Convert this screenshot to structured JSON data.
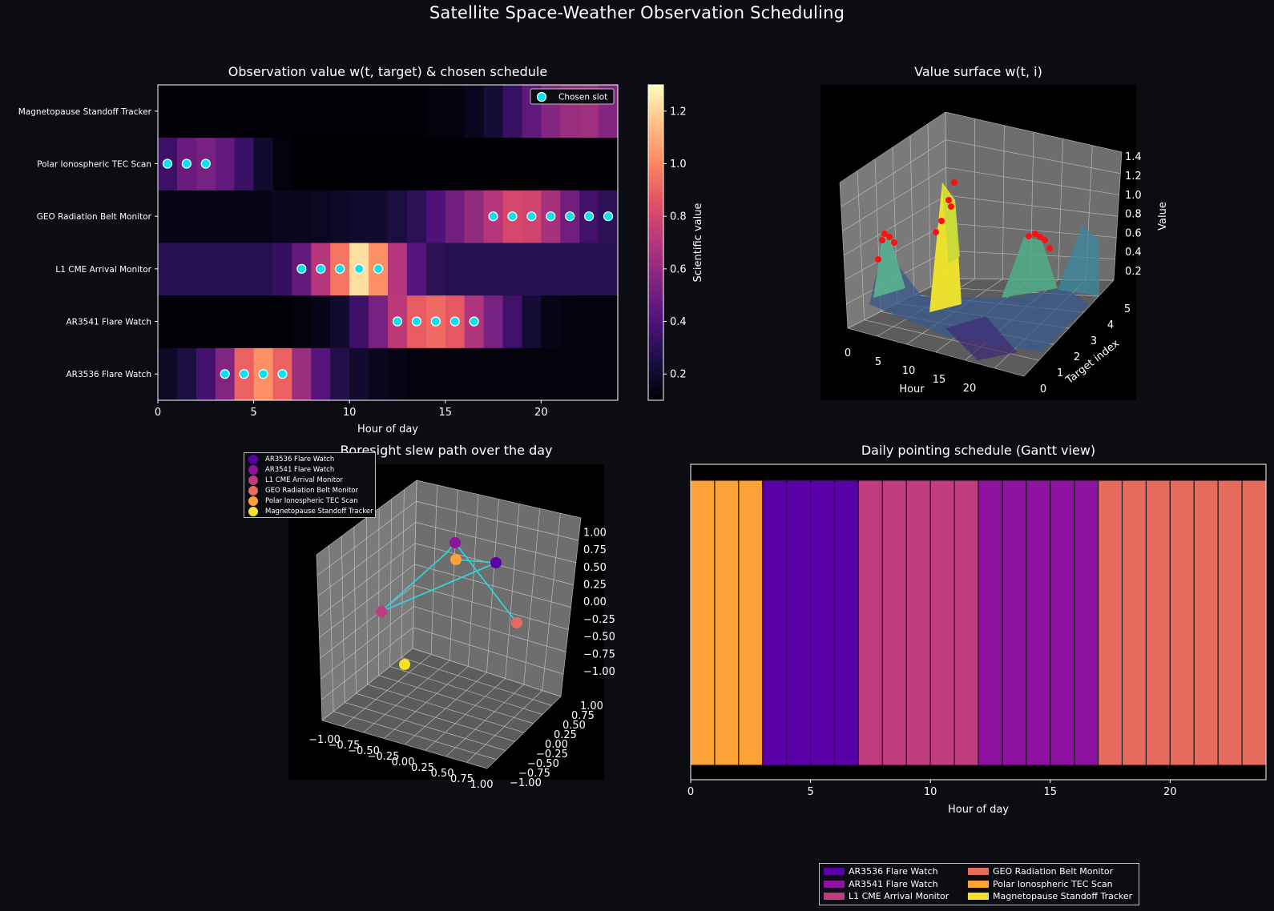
{
  "figure": {
    "title": "Satellite Space-Weather Observation Scheduling"
  },
  "colors": {
    "background": "#0b0d12",
    "targets": [
      "#5a00a8",
      "#8d12a0",
      "#c13c7e",
      "#e56b5d",
      "#fca236",
      "#f5e12a"
    ],
    "chosen": "#00e5ee"
  },
  "chart_data": [
    {
      "type": "heatmap",
      "title": "Observation value  w(t, target)  &  chosen schedule",
      "xlabel": "Hour of day",
      "xlim": [
        0,
        24
      ],
      "xticks": [
        0,
        5,
        10,
        15,
        20
      ],
      "rows": [
        "AR3536 Flare Watch",
        "AR3541 Flare Watch",
        "L1 CME Arrival Monitor",
        "GEO Radiation Belt Monitor",
        "Polar Ionospheric TEC Scan",
        "Magnetopause Standoff Tracker"
      ],
      "values": [
        [
          0.18,
          0.24,
          0.36,
          0.55,
          0.9,
          1.02,
          0.9,
          0.62,
          0.42,
          0.27,
          0.2,
          0.16,
          0.14,
          0.13,
          0.12,
          0.12,
          0.12,
          0.12,
          0.12,
          0.12,
          0.12,
          0.12,
          0.12,
          0.12
        ],
        [
          0.11,
          0.11,
          0.11,
          0.11,
          0.11,
          0.11,
          0.11,
          0.12,
          0.15,
          0.2,
          0.35,
          0.52,
          0.72,
          0.88,
          0.92,
          0.87,
          0.68,
          0.52,
          0.36,
          0.22,
          0.15,
          0.13,
          0.12,
          0.12
        ],
        [
          0.28,
          0.28,
          0.28,
          0.28,
          0.28,
          0.28,
          0.32,
          0.46,
          0.7,
          0.95,
          1.22,
          1.02,
          0.7,
          0.42,
          0.3,
          0.28,
          0.28,
          0.28,
          0.28,
          0.28,
          0.28,
          0.28,
          0.28,
          0.28
        ],
        [
          0.15,
          0.15,
          0.15,
          0.15,
          0.15,
          0.15,
          0.16,
          0.16,
          0.17,
          0.18,
          0.19,
          0.2,
          0.24,
          0.3,
          0.4,
          0.5,
          0.6,
          0.7,
          0.8,
          0.78,
          0.66,
          0.5,
          0.36,
          0.3
        ],
        [
          0.35,
          0.48,
          0.52,
          0.46,
          0.34,
          0.2,
          0.12,
          0.06,
          0.06,
          0.06,
          0.06,
          0.06,
          0.06,
          0.06,
          0.06,
          0.06,
          0.06,
          0.06,
          0.06,
          0.06,
          0.06,
          0.06,
          0.06,
          0.06
        ],
        [
          0.11,
          0.11,
          0.11,
          0.11,
          0.11,
          0.11,
          0.11,
          0.11,
          0.11,
          0.11,
          0.11,
          0.11,
          0.11,
          0.11,
          0.12,
          0.13,
          0.16,
          0.22,
          0.33,
          0.45,
          0.56,
          0.62,
          0.64,
          0.56
        ]
      ],
      "chosen_slots": [
        {
          "target": "AR3536 Flare Watch",
          "hours": [
            3.5,
            4.5,
            5.5,
            6.5
          ]
        },
        {
          "target": "AR3541 Flare Watch",
          "hours": [
            12.5,
            13.5,
            14.5,
            15.5,
            16.5
          ]
        },
        {
          "target": "L1 CME Arrival Monitor",
          "hours": [
            7.5,
            8.5,
            9.5,
            10.5,
            11.5
          ]
        },
        {
          "target": "GEO Radiation Belt Monitor",
          "hours": [
            17.5,
            18.5,
            19.5,
            20.5,
            21.5,
            22.5,
            23.5
          ]
        },
        {
          "target": "Polar Ionospheric TEC Scan",
          "hours": [
            0.5,
            1.5,
            2.5
          ]
        },
        {
          "target": "Magnetopause Standoff Tracker",
          "hours": []
        }
      ],
      "legend": "Chosen slot",
      "legend_position": "upper right",
      "colorbar": {
        "label": "Scientific value",
        "range": [
          0.1,
          1.3
        ],
        "ticks": [
          "0.2",
          "0.4",
          "0.6",
          "0.8",
          "1.0",
          "1.2"
        ]
      }
    },
    {
      "type": "surface3d",
      "title": "Value surface  w(t, i)",
      "xlabel": "Hour",
      "ylabel": "Target index",
      "zlabel": "Value",
      "xticks": [
        "0",
        "5",
        "10",
        "15",
        "20"
      ],
      "yticks": [
        "0",
        "1",
        "2",
        "3",
        "4",
        "5"
      ],
      "zticks": [
        "0.2",
        "0.4",
        "0.6",
        "0.8",
        "1.0",
        "1.2",
        "1.4"
      ],
      "colormap": "viridis",
      "highlighted_points": "chosen slots (red)"
    },
    {
      "type": "scatter3d",
      "title": "Boresight slew path over the day",
      "xticks": [
        "−1.00",
        "−0.75",
        "−0.50",
        "−0.25",
        "0.00",
        "0.25",
        "0.50",
        "0.75",
        "1.00"
      ],
      "yticks": [
        "−1.00",
        "−0.75",
        "−0.50",
        "−0.25",
        "0.00",
        "0.25",
        "0.50",
        "0.75",
        "1.00"
      ],
      "zticks": [
        "−1.00",
        "−0.75",
        "−0.50",
        "−0.25",
        "0.00",
        "0.25",
        "0.50",
        "0.75",
        "1.00"
      ],
      "legend": [
        "AR3536 Flare Watch",
        "AR3541 Flare Watch",
        "L1 CME Arrival Monitor",
        "GEO Radiation Belt Monitor",
        "Polar Ionospheric TEC Scan",
        "Magnetopause Standoff Tracker"
      ],
      "legend_position": "upper left",
      "path_order": [
        "Polar Ionospheric TEC Scan",
        "AR3536 Flare Watch",
        "L1 CME Arrival Monitor",
        "AR3541 Flare Watch",
        "GEO Radiation Belt Monitor"
      ]
    },
    {
      "type": "gantt",
      "title": "Daily pointing schedule (Gantt view)",
      "xlabel": "Hour of day",
      "xlim": [
        0,
        24
      ],
      "xticks": [
        0,
        5,
        10,
        15,
        20
      ],
      "slots": [
        "Polar Ionospheric TEC Scan",
        "Polar Ionospheric TEC Scan",
        "Polar Ionospheric TEC Scan",
        "AR3536 Flare Watch",
        "AR3536 Flare Watch",
        "AR3536 Flare Watch",
        "AR3536 Flare Watch",
        "L1 CME Arrival Monitor",
        "L1 CME Arrival Monitor",
        "L1 CME Arrival Monitor",
        "L1 CME Arrival Monitor",
        "L1 CME Arrival Monitor",
        "AR3541 Flare Watch",
        "AR3541 Flare Watch",
        "AR3541 Flare Watch",
        "AR3541 Flare Watch",
        "AR3541 Flare Watch",
        "GEO Radiation Belt Monitor",
        "GEO Radiation Belt Monitor",
        "GEO Radiation Belt Monitor",
        "GEO Radiation Belt Monitor",
        "GEO Radiation Belt Monitor",
        "GEO Radiation Belt Monitor",
        "GEO Radiation Belt Monitor"
      ],
      "legend": [
        "AR3536 Flare Watch",
        "AR3541 Flare Watch",
        "L1 CME Arrival Monitor",
        "GEO Radiation Belt Monitor",
        "Polar Ionospheric TEC Scan",
        "Magnetopause Standoff Tracker"
      ],
      "legend_position": "lower center"
    }
  ]
}
